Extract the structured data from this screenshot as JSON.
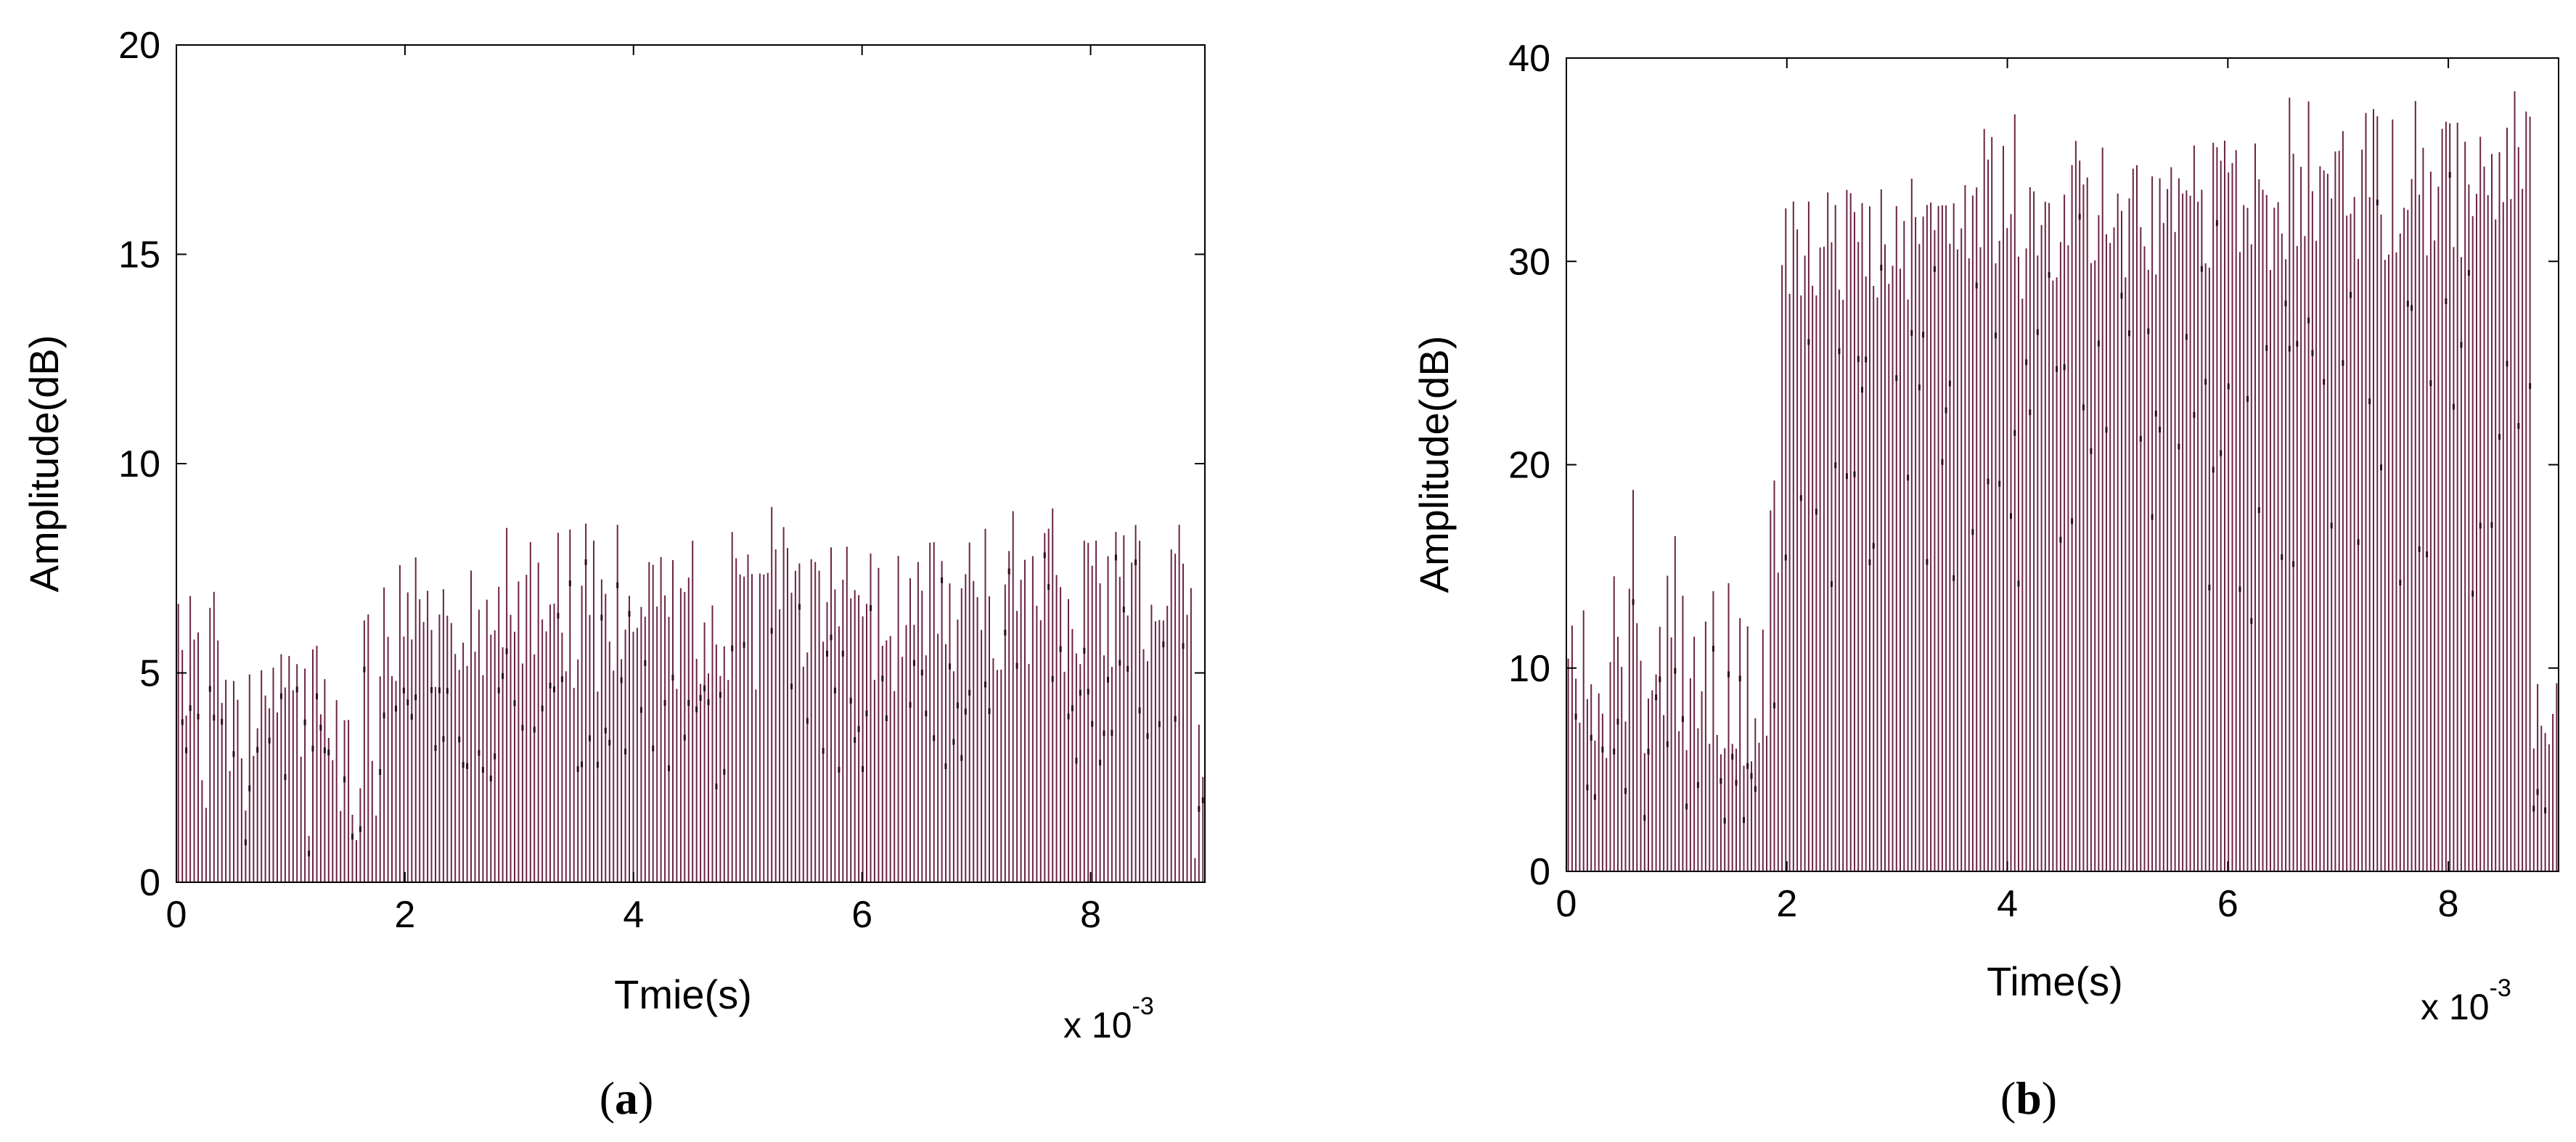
{
  "colors": {
    "series": "#6b2545",
    "axes": "#000000",
    "background": "#ffffff"
  },
  "chart_data": [
    {
      "type": "bar",
      "panel_label_letter": "a",
      "xlabel": "Tmie(s)",
      "ylabel": "Amplitude(dB)",
      "x_multiplier": "x 10",
      "x_multiplier_exponent": "-3",
      "xlim": [
        0,
        9
      ],
      "ylim": [
        0,
        20
      ],
      "xticks": [
        0,
        2,
        4,
        6,
        8
      ],
      "yticks": [
        0,
        5,
        10,
        15,
        20
      ],
      "grid": false,
      "box": true,
      "x_units_note": "ms",
      "segments": [
        {
          "x_start": 0.0,
          "x_end": 1.75,
          "low": 1.0,
          "high": 6.0,
          "peak": 7.2
        },
        {
          "x_start": 1.75,
          "x_end": 4.5,
          "low": 4.5,
          "high": 7.8,
          "peak": 8.6
        },
        {
          "x_start": 4.5,
          "x_end": 6.5,
          "low": 4.5,
          "high": 8.2,
          "peak": 9.1
        },
        {
          "x_start": 6.5,
          "x_end": 8.85,
          "low": 5.0,
          "high": 8.5,
          "peak": 9.1
        },
        {
          "x_start": 8.85,
          "x_end": 9.0,
          "low": 0.5,
          "high": 4.5,
          "peak": 7.3
        }
      ],
      "bar_count": 260
    },
    {
      "type": "bar",
      "panel_label_letter": "b",
      "xlabel": "Time(s)",
      "ylabel": "Amplitude(dB)",
      "x_multiplier": "x 10",
      "x_multiplier_exponent": "-3",
      "xlim": [
        0,
        9
      ],
      "ylim": [
        0,
        40
      ],
      "xticks": [
        0,
        2,
        4,
        6,
        8
      ],
      "yticks": [
        0,
        10,
        20,
        30,
        40
      ],
      "grid": false,
      "box": true,
      "segments": [
        {
          "x_start": 0.0,
          "x_end": 1.95,
          "low": 5.0,
          "high": 15.0,
          "peak": 21.5
        },
        {
          "x_start": 1.95,
          "x_end": 4.5,
          "low": 28.0,
          "high": 34.0,
          "peak": 37.5
        },
        {
          "x_start": 4.5,
          "x_end": 6.5,
          "low": 29.0,
          "high": 36.0,
          "peak": 38.7
        },
        {
          "x_start": 6.5,
          "x_end": 8.75,
          "low": 30.0,
          "high": 37.5,
          "peak": 38.6
        },
        {
          "x_start": 8.75,
          "x_end": 9.0,
          "low": 5.0,
          "high": 10.0,
          "peak": 10.2
        }
      ],
      "bar_count": 260
    }
  ]
}
